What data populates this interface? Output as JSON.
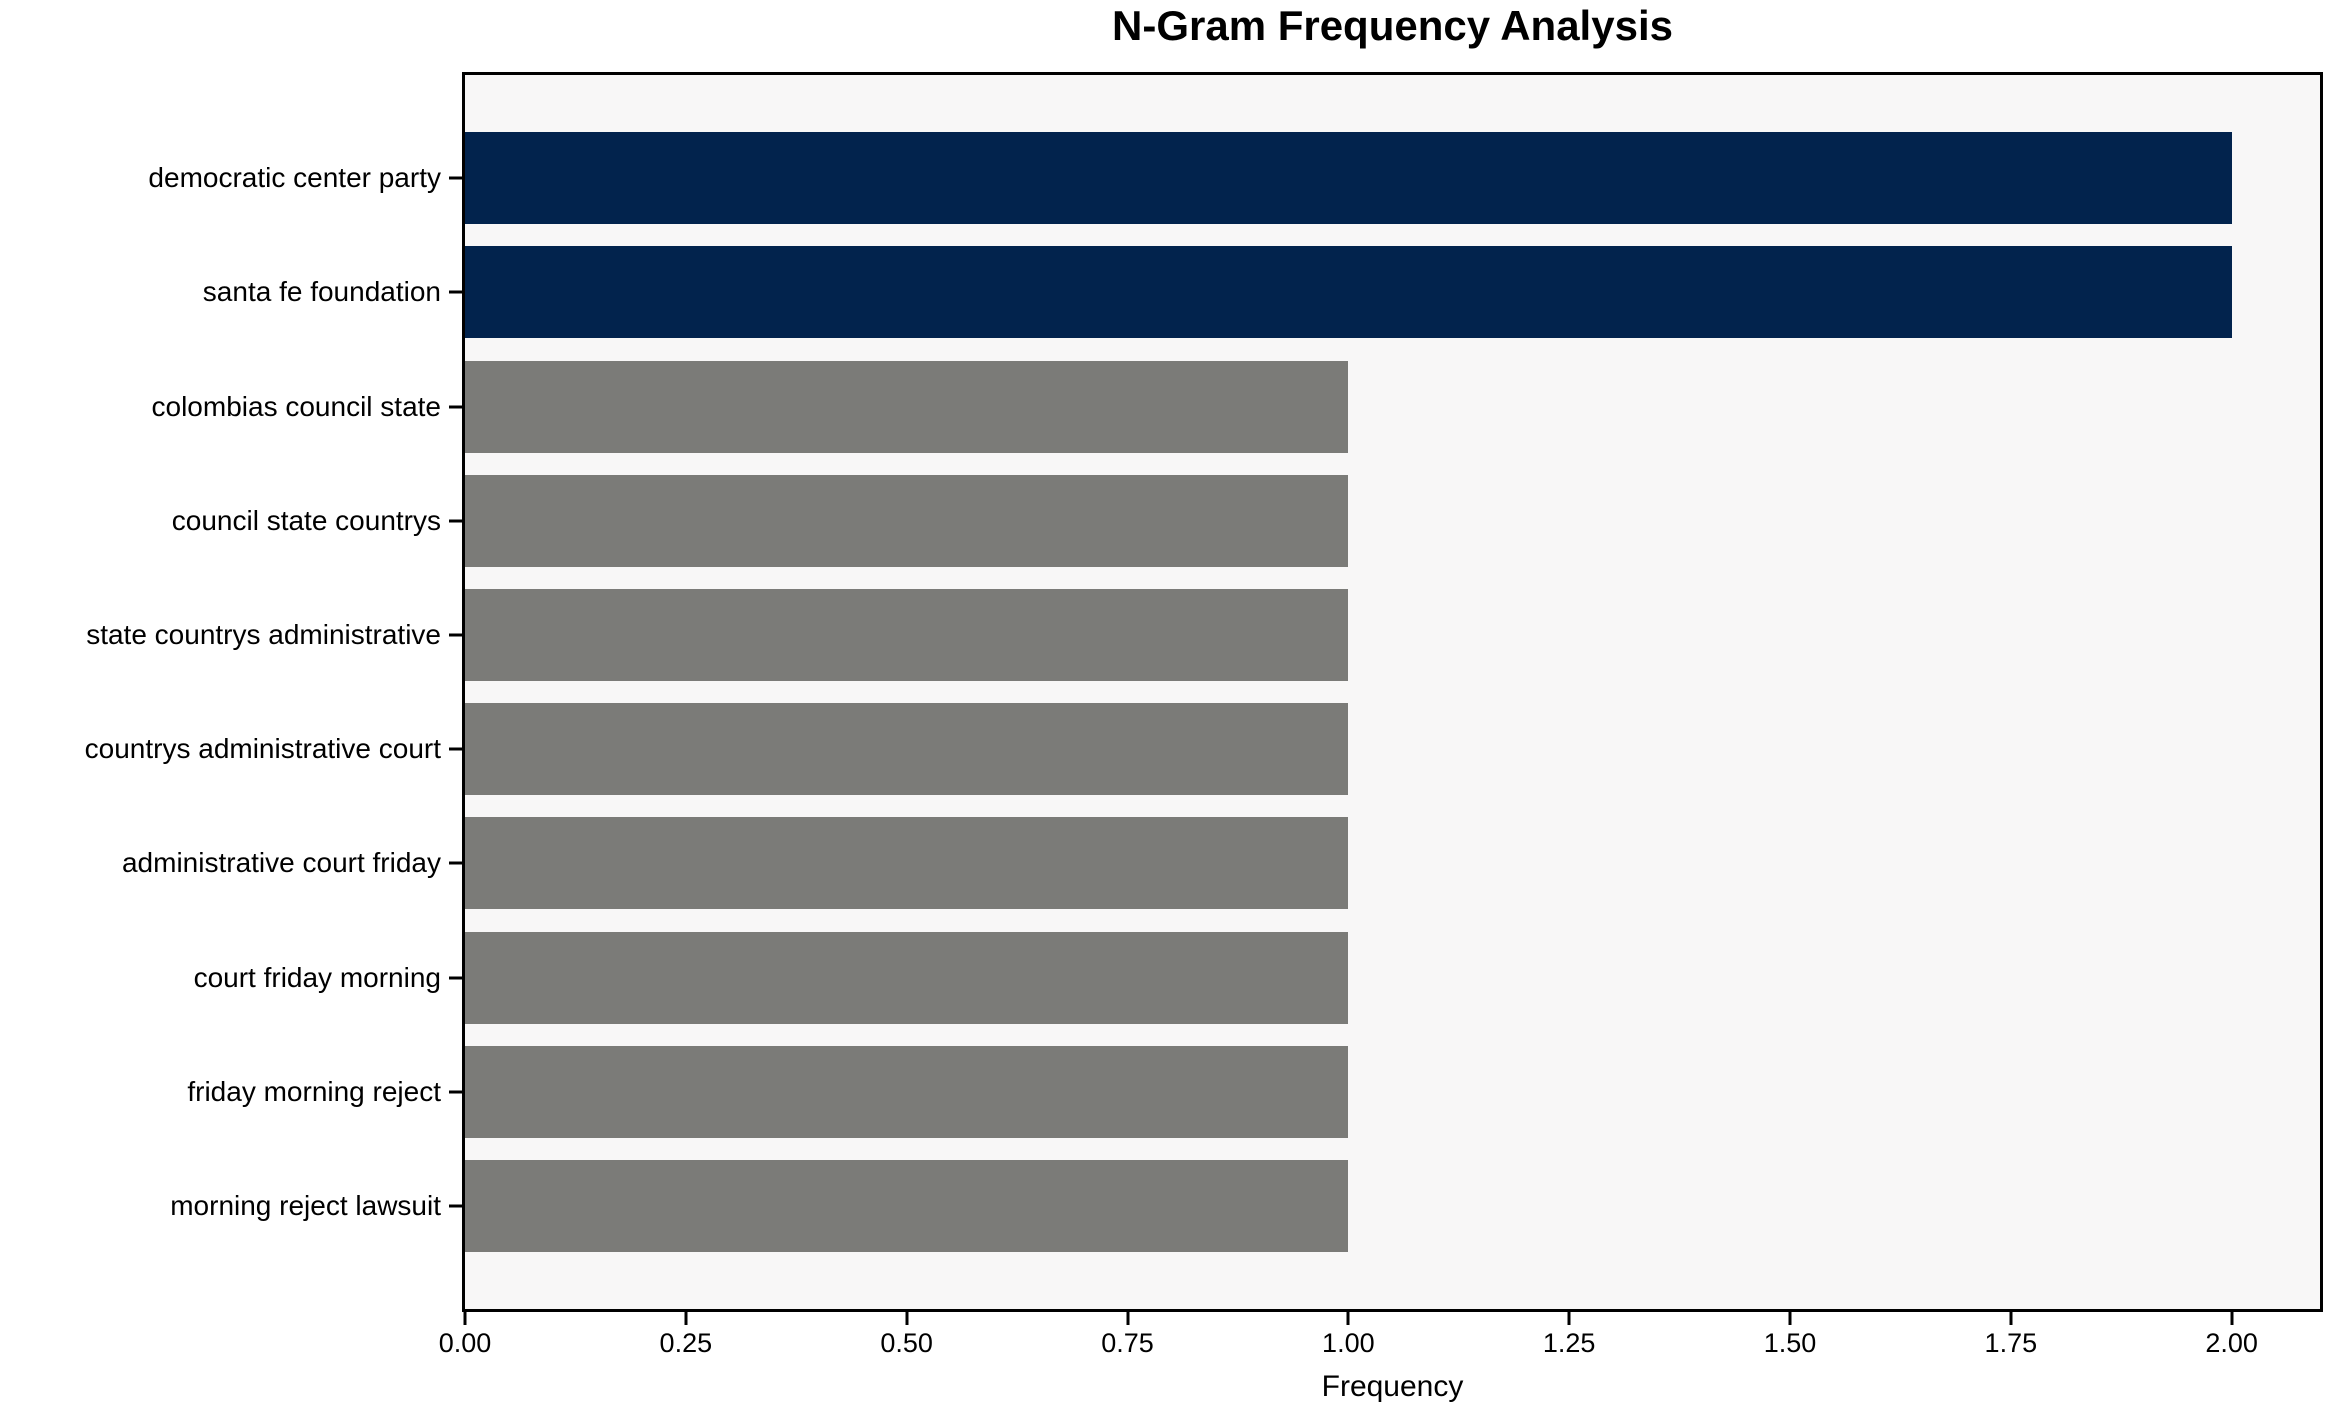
{
  "chart_data": {
    "type": "bar",
    "orientation": "horizontal",
    "title": "N-Gram Frequency Analysis",
    "xlabel": "Frequency",
    "ylabel": "",
    "categories": [
      "democratic center party",
      "santa fe foundation",
      "colombias council state",
      "council state countrys",
      "state countrys administrative",
      "countrys administrative court",
      "administrative court friday",
      "court friday morning",
      "friday morning reject",
      "morning reject lawsuit"
    ],
    "values": [
      2,
      2,
      1,
      1,
      1,
      1,
      1,
      1,
      1,
      1
    ],
    "bar_colors": [
      "#02234d",
      "#02234d",
      "#7b7b78",
      "#7b7b78",
      "#7b7b78",
      "#7b7b78",
      "#7b7b78",
      "#7b7b78",
      "#7b7b78",
      "#7b7b78"
    ],
    "highlight_color": "#02234d",
    "default_color": "#7b7b78",
    "xlim": [
      0,
      2.1
    ],
    "xticks": [
      "0.00",
      "0.25",
      "0.50",
      "0.75",
      "1.00",
      "1.25",
      "1.50",
      "1.75",
      "2.00"
    ],
    "xtick_values": [
      0,
      0.25,
      0.5,
      0.75,
      1.0,
      1.25,
      1.5,
      1.75,
      2.0
    ],
    "grid": false,
    "legend": null,
    "plot_background": "#f8f7f7",
    "figure_background": "#ffffff",
    "spine_color": "#000000"
  }
}
